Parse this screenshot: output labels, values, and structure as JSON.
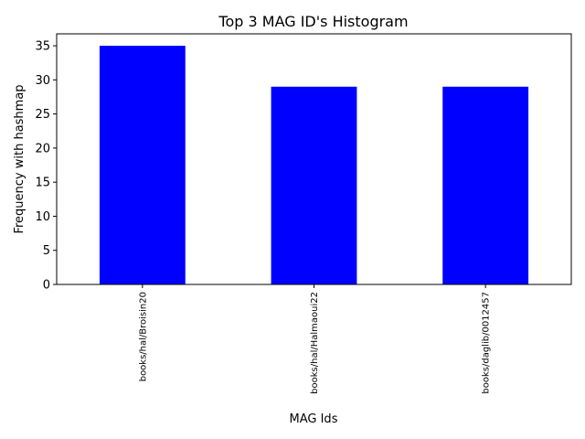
{
  "chart_data": {
    "type": "bar",
    "title": "Top 3 MAG ID's Histogram",
    "xlabel": "MAG Ids",
    "ylabel": "Frequency with hashmap",
    "categories": [
      "books/hal/Broisin20",
      "books/hal/Halmaoui22",
      "books/daglib/0012457"
    ],
    "values": [
      35,
      29,
      29
    ],
    "ylim": [
      0,
      36.75
    ],
    "yticks": [
      0,
      5,
      10,
      15,
      20,
      25,
      30,
      35
    ],
    "ytick_labels": [
      "0",
      "5",
      "10",
      "15",
      "20",
      "25",
      "30",
      "35"
    ],
    "bar_color": "#0000ff",
    "grid": false,
    "legend": false
  }
}
